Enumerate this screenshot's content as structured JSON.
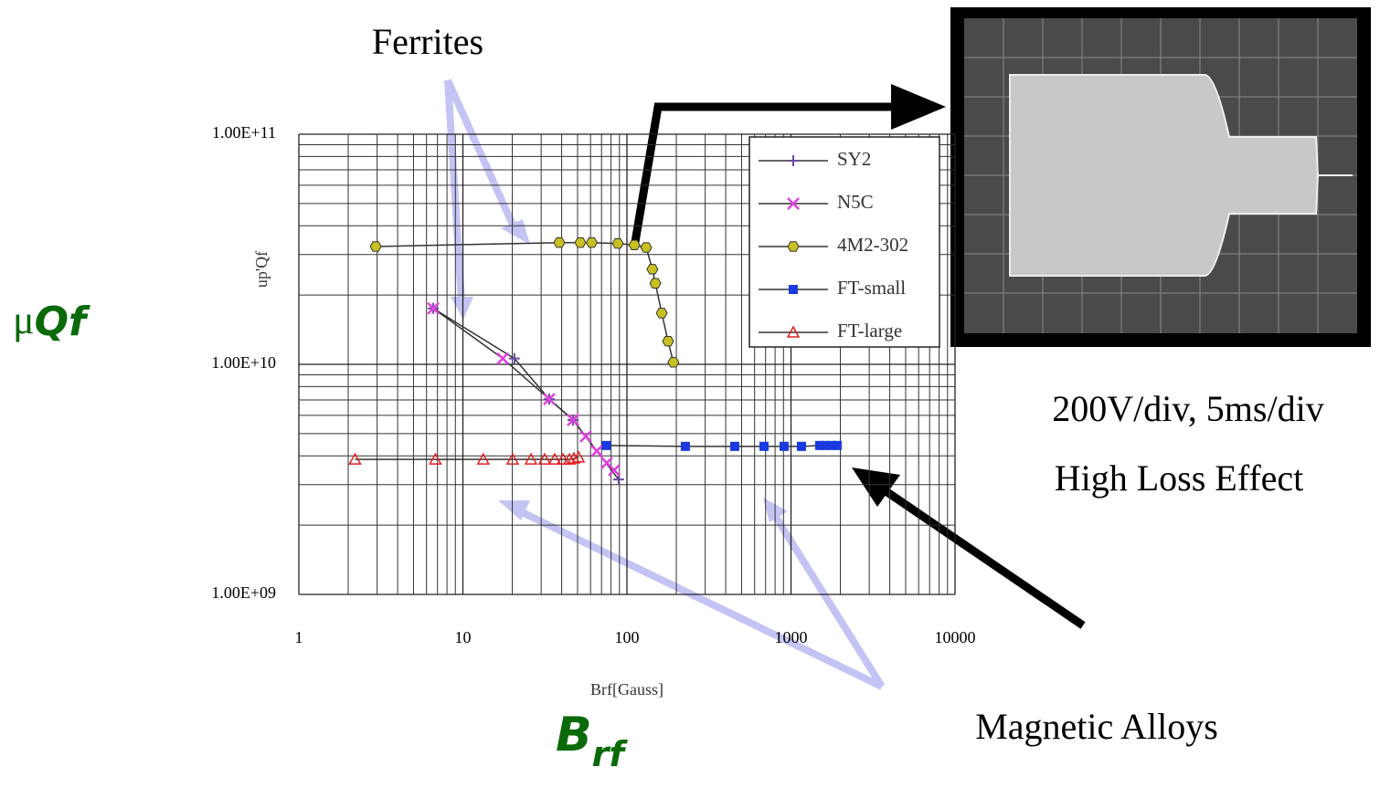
{
  "chart_data": {
    "type": "line",
    "x_label": "Brf[Gauss]",
    "y_label": "up'Qf",
    "xscale": "log",
    "yscale": "log",
    "xlim": [
      1,
      10000
    ],
    "ylim": [
      1000000000,
      100000000000
    ],
    "xticks": [
      1,
      10,
      100,
      1000,
      10000
    ],
    "yticks": [
      {
        "value": 1000000000,
        "label": "1.00E+09"
      },
      {
        "value": 10000000000,
        "label": "1.00E+10"
      },
      {
        "value": 100000000000,
        "label": "1.00E+11"
      }
    ],
    "grid": true,
    "minor_grid": true,
    "legend": "upper right",
    "line_color": "#333333",
    "series": [
      {
        "name": "SY2",
        "color": "#6a4aa0",
        "marker": "plus",
        "x": [
          6.6,
          20.6,
          33.6,
          46.9,
          89
        ],
        "values": [
          17500000000,
          10600000000,
          7060000000,
          5730000000,
          3160000000
        ]
      },
      {
        "name": "N5C",
        "color": "#e040e0",
        "marker": "x",
        "x": [
          6.6,
          17.5,
          33.6,
          46.9,
          56.1,
          65.5,
          75.4,
          83.6
        ],
        "values": [
          17500000000,
          10600000000,
          7060000000,
          5730000000,
          4860000000,
          4200000000,
          3730000000,
          3470000000
        ]
      },
      {
        "name": "4M2-302",
        "color": "#c8c020",
        "marker": "hexagon",
        "x": [
          2.94,
          38.7,
          52,
          61,
          88,
          111,
          131,
          143,
          149,
          163,
          178,
          192
        ],
        "values": [
          32500000000,
          33800000000,
          33800000000,
          33800000000,
          33500000000,
          33000000000,
          32200000000,
          25900000000,
          22500000000,
          16700000000,
          12600000000,
          10200000000
        ]
      },
      {
        "name": "FT-small",
        "color": "#1a3ae0",
        "marker": "square",
        "x": [
          75,
          227,
          454,
          685,
          908,
          1158,
          1497,
          1617,
          1770,
          1911
        ],
        "values": [
          4440000000,
          4400000000,
          4400000000,
          4400000000,
          4400000000,
          4400000000,
          4440000000,
          4440000000,
          4440000000,
          4440000000
        ]
      },
      {
        "name": "FT-large",
        "color": "#e02020",
        "marker": "triangle",
        "x": [
          2.2,
          6.8,
          13.3,
          20.1,
          26,
          31.5,
          36.3,
          40.8,
          44.6,
          47.5,
          50.7
        ],
        "values": [
          3860000000,
          3860000000,
          3860000000,
          3860000000,
          3860000000,
          3860000000,
          3860000000,
          3860000000,
          3860000000,
          3900000000,
          3940000000
        ]
      }
    ],
    "annotations": {
      "ferrites": "Ferrites",
      "scope_settings": "200V/div, 5ms/div",
      "high_loss": "High Loss Effect",
      "alloys": "Magnetic Alloys"
    },
    "mu_qf": {
      "symbol": "μ",
      "text": "Qf"
    },
    "b_rf": {
      "base": "B",
      "sub": "rf"
    }
  }
}
